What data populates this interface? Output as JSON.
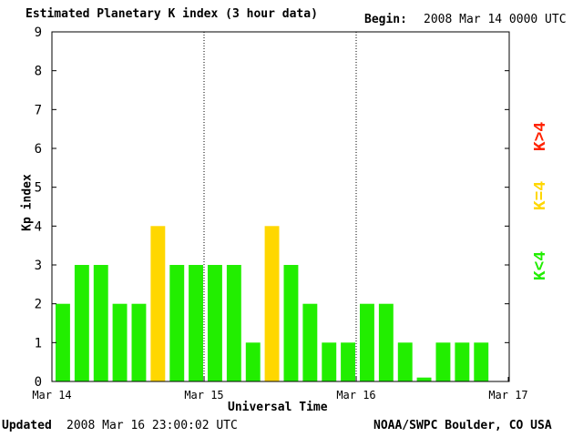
{
  "header": {
    "title": "Estimated Planetary K index (3 hour data)",
    "begin_label": "Begin:",
    "begin_value": "2008 Mar 14 0000 UTC"
  },
  "footer": {
    "updated_label": "Updated",
    "updated_value": "2008 Mar 16 23:00:02 UTC",
    "credit": "NOAA/SWPC Boulder, CO USA"
  },
  "legend": {
    "greater": "K>4",
    "equal": "K=4",
    "less": "K<4"
  },
  "colors": {
    "low": "#22ee00",
    "mid": "#ffd700",
    "high": "#ff2200"
  },
  "chart_data": {
    "type": "bar",
    "title": "Estimated Planetary K index (3 hour data)",
    "xlabel": "Universal Time",
    "ylabel": "Kp index",
    "ylim": [
      0,
      9
    ],
    "yticks": [
      "0",
      "1",
      "2",
      "3",
      "4",
      "5",
      "6",
      "7",
      "8",
      "9"
    ],
    "xticks": [
      "Mar 14",
      "Mar 15",
      "Mar 16",
      "Mar 17"
    ],
    "grid": "dotted vertical day separators",
    "bars_per_day": 8,
    "values": [
      2,
      3,
      3,
      2,
      2,
      4,
      3,
      3,
      3,
      3,
      1,
      4,
      3,
      2,
      1,
      1,
      2,
      2,
      1,
      0.1,
      1,
      1,
      1
    ]
  }
}
